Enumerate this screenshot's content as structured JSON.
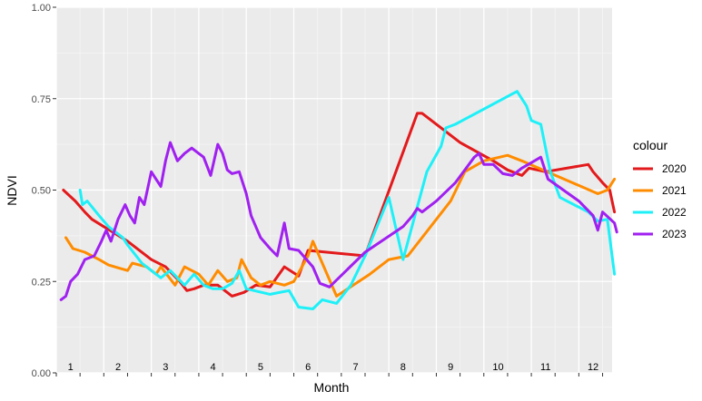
{
  "chart_data": {
    "type": "line",
    "xlabel": "Month",
    "ylabel": "NDVI",
    "xlim": [
      1,
      12.7
    ],
    "ylim": [
      0,
      1
    ],
    "yticks": [
      0,
      0.25,
      0.5,
      0.75,
      1
    ],
    "yticklabels": [
      "0.00",
      "0.25",
      "0.50",
      "0.75",
      "1.00"
    ],
    "month_labels": [
      "1",
      "2",
      "3",
      "4",
      "5",
      "6",
      "7",
      "8",
      "9",
      "10",
      "11",
      "12"
    ],
    "grid": true,
    "legend": {
      "title": "colour",
      "position": "right"
    },
    "series": [
      {
        "name": "2020",
        "color": "#e31a1c",
        "points": [
          [
            1.15,
            0.5
          ],
          [
            1.4,
            0.47
          ],
          [
            1.6,
            0.44
          ],
          [
            1.75,
            0.42
          ],
          [
            2.0,
            0.4
          ],
          [
            2.5,
            0.36
          ],
          [
            3.0,
            0.31
          ],
          [
            3.3,
            0.29
          ],
          [
            3.6,
            0.25
          ],
          [
            3.75,
            0.225
          ],
          [
            3.9,
            0.23
          ],
          [
            4.1,
            0.24
          ],
          [
            4.4,
            0.24
          ],
          [
            4.7,
            0.21
          ],
          [
            4.95,
            0.22
          ],
          [
            5.2,
            0.24
          ],
          [
            5.5,
            0.235
          ],
          [
            5.8,
            0.29
          ],
          [
            6.1,
            0.265
          ],
          [
            6.3,
            0.335
          ],
          [
            7.5,
            0.32
          ],
          [
            8.6,
            0.71
          ],
          [
            8.7,
            0.71
          ],
          [
            9.5,
            0.63
          ],
          [
            10.2,
            0.58
          ],
          [
            10.5,
            0.555
          ],
          [
            10.8,
            0.54
          ],
          [
            10.95,
            0.56
          ],
          [
            11.3,
            0.55
          ],
          [
            12.2,
            0.57
          ],
          [
            12.3,
            0.55
          ],
          [
            12.5,
            0.52
          ],
          [
            12.65,
            0.5
          ],
          [
            12.75,
            0.44
          ]
        ]
      },
      {
        "name": "2021",
        "color": "#ff8c00",
        "points": [
          [
            1.2,
            0.37
          ],
          [
            1.35,
            0.34
          ],
          [
            1.6,
            0.33
          ],
          [
            1.9,
            0.31
          ],
          [
            2.1,
            0.295
          ],
          [
            2.5,
            0.28
          ],
          [
            2.6,
            0.3
          ],
          [
            2.9,
            0.29
          ],
          [
            3.1,
            0.27
          ],
          [
            3.2,
            0.29
          ],
          [
            3.5,
            0.24
          ],
          [
            3.7,
            0.29
          ],
          [
            4.0,
            0.27
          ],
          [
            4.2,
            0.24
          ],
          [
            4.4,
            0.28
          ],
          [
            4.6,
            0.25
          ],
          [
            4.8,
            0.26
          ],
          [
            4.9,
            0.31
          ],
          [
            5.1,
            0.26
          ],
          [
            5.3,
            0.24
          ],
          [
            5.5,
            0.25
          ],
          [
            5.8,
            0.24
          ],
          [
            6.0,
            0.25
          ],
          [
            6.3,
            0.32
          ],
          [
            6.4,
            0.36
          ],
          [
            6.6,
            0.3
          ],
          [
            6.9,
            0.21
          ],
          [
            7.6,
            0.27
          ],
          [
            8.0,
            0.31
          ],
          [
            8.4,
            0.32
          ],
          [
            9.3,
            0.47
          ],
          [
            9.6,
            0.55
          ],
          [
            10.0,
            0.58
          ],
          [
            10.5,
            0.595
          ],
          [
            10.8,
            0.58
          ],
          [
            12.4,
            0.49
          ],
          [
            12.6,
            0.5
          ],
          [
            12.75,
            0.53
          ]
        ]
      },
      {
        "name": "2022",
        "color": "#1ef0f8",
        "points": [
          [
            1.5,
            0.5
          ],
          [
            1.55,
            0.46
          ],
          [
            1.65,
            0.47
          ],
          [
            1.9,
            0.43
          ],
          [
            2.1,
            0.4
          ],
          [
            2.4,
            0.37
          ],
          [
            2.5,
            0.35
          ],
          [
            2.8,
            0.3
          ],
          [
            3.0,
            0.28
          ],
          [
            3.2,
            0.26
          ],
          [
            3.4,
            0.28
          ],
          [
            3.7,
            0.24
          ],
          [
            3.9,
            0.27
          ],
          [
            4.1,
            0.24
          ],
          [
            4.3,
            0.23
          ],
          [
            4.5,
            0.23
          ],
          [
            4.7,
            0.245
          ],
          [
            4.85,
            0.28
          ],
          [
            5.0,
            0.23
          ],
          [
            5.5,
            0.215
          ],
          [
            5.9,
            0.225
          ],
          [
            6.1,
            0.18
          ],
          [
            6.4,
            0.175
          ],
          [
            6.6,
            0.2
          ],
          [
            6.9,
            0.19
          ],
          [
            7.2,
            0.24
          ],
          [
            7.5,
            0.32
          ],
          [
            8.0,
            0.48
          ],
          [
            8.3,
            0.31
          ],
          [
            8.8,
            0.55
          ],
          [
            9.1,
            0.62
          ],
          [
            9.2,
            0.67
          ],
          [
            9.4,
            0.68
          ],
          [
            10.7,
            0.77
          ],
          [
            10.9,
            0.73
          ],
          [
            11.0,
            0.69
          ],
          [
            11.2,
            0.68
          ],
          [
            11.4,
            0.55
          ],
          [
            11.6,
            0.48
          ],
          [
            12.2,
            0.44
          ],
          [
            12.4,
            0.415
          ],
          [
            12.6,
            0.42
          ],
          [
            12.75,
            0.27
          ]
        ]
      },
      {
        "name": "2023",
        "color": "#a020f0",
        "points": [
          [
            1.1,
            0.2
          ],
          [
            1.2,
            0.21
          ],
          [
            1.3,
            0.25
          ],
          [
            1.45,
            0.27
          ],
          [
            1.6,
            0.31
          ],
          [
            1.8,
            0.32
          ],
          [
            1.95,
            0.36
          ],
          [
            2.05,
            0.39
          ],
          [
            2.15,
            0.36
          ],
          [
            2.3,
            0.42
          ],
          [
            2.45,
            0.46
          ],
          [
            2.55,
            0.43
          ],
          [
            2.65,
            0.41
          ],
          [
            2.75,
            0.48
          ],
          [
            2.85,
            0.46
          ],
          [
            3.0,
            0.55
          ],
          [
            3.1,
            0.53
          ],
          [
            3.2,
            0.51
          ],
          [
            3.3,
            0.58
          ],
          [
            3.4,
            0.63
          ],
          [
            3.55,
            0.58
          ],
          [
            3.7,
            0.6
          ],
          [
            3.85,
            0.615
          ],
          [
            4.0,
            0.6
          ],
          [
            4.1,
            0.59
          ],
          [
            4.25,
            0.54
          ],
          [
            4.4,
            0.625
          ],
          [
            4.5,
            0.6
          ],
          [
            4.6,
            0.555
          ],
          [
            4.7,
            0.545
          ],
          [
            4.85,
            0.55
          ],
          [
            5.0,
            0.49
          ],
          [
            5.1,
            0.43
          ],
          [
            5.3,
            0.37
          ],
          [
            5.5,
            0.34
          ],
          [
            5.65,
            0.32
          ],
          [
            5.8,
            0.41
          ],
          [
            5.9,
            0.34
          ],
          [
            6.1,
            0.335
          ],
          [
            6.4,
            0.29
          ],
          [
            6.55,
            0.245
          ],
          [
            6.75,
            0.235
          ],
          [
            7.5,
            0.33
          ],
          [
            8.3,
            0.4
          ],
          [
            8.5,
            0.43
          ],
          [
            8.6,
            0.45
          ],
          [
            8.7,
            0.44
          ],
          [
            9.0,
            0.47
          ],
          [
            9.4,
            0.52
          ],
          [
            9.8,
            0.59
          ],
          [
            9.9,
            0.6
          ],
          [
            10.0,
            0.57
          ],
          [
            10.2,
            0.57
          ],
          [
            10.4,
            0.545
          ],
          [
            10.6,
            0.54
          ],
          [
            10.8,
            0.56
          ],
          [
            11.0,
            0.575
          ],
          [
            11.2,
            0.59
          ],
          [
            11.35,
            0.53
          ],
          [
            12.0,
            0.47
          ],
          [
            12.3,
            0.43
          ],
          [
            12.4,
            0.39
          ],
          [
            12.5,
            0.44
          ],
          [
            12.75,
            0.41
          ],
          [
            12.8,
            0.385
          ]
        ]
      }
    ]
  }
}
